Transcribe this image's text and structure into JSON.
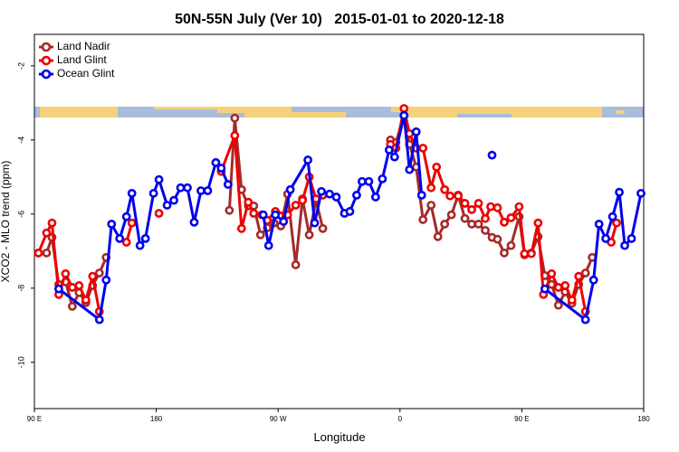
{
  "chart_data": {
    "type": "line",
    "title": "50N-55N July (Ver 10)   2015-01-01 to 2020-12-18",
    "xlabel": "Longitude",
    "ylabel": "XCO2 - MLO trend (ppm)",
    "xlim": [
      90,
      540
    ],
    "ylim": [
      -11.25,
      -1.15
    ],
    "xticks": [
      {
        "value": 90,
        "label": "90 E"
      },
      {
        "value": 180,
        "label": "180"
      },
      {
        "value": 270,
        "label": "90 W"
      },
      {
        "value": 360,
        "label": "0"
      },
      {
        "value": 450,
        "label": "90 E"
      },
      {
        "value": 540,
        "label": "180"
      }
    ],
    "yticks": [
      -2,
      -4,
      -6,
      -8,
      -10
    ],
    "legend": "top-left",
    "series": [
      {
        "name": "Land Nadir",
        "color": "#a52a2a",
        "x": [
          93,
          99,
          103,
          108,
          113,
          118,
          123,
          128,
          133,
          138,
          143,
          null,
          234,
          238,
          243,
          248,
          252,
          257,
          262,
          267,
          272,
          277,
          283,
          288,
          293,
          298,
          303,
          null,
          353,
          357,
          363,
          367,
          372,
          377,
          383,
          388,
          393,
          398,
          403,
          408,
          413,
          418,
          423,
          428,
          432,
          437,
          442,
          448,
          452,
          457,
          462,
          467,
          472,
          477,
          482,
          487,
          492,
          497,
          502
        ],
        "values": [
          -7.05,
          -7.05,
          -6.63,
          -7.9,
          -7.83,
          -8.49,
          -8.12,
          -8.39,
          -7.93,
          -7.59,
          -7.17,
          null,
          -5.9,
          -3.41,
          -5.34,
          -5.78,
          -5.78,
          -6.56,
          -6.37,
          -6.24,
          -6.32,
          -5.46,
          -7.37,
          -5.59,
          -6.56,
          -5.63,
          -6.39,
          null,
          -4.0,
          -4.07,
          -3.34,
          -4.12,
          -4.73,
          -6.15,
          -5.76,
          -6.61,
          -6.27,
          -6.02,
          -5.49,
          -6.12,
          -6.27,
          -6.27,
          -6.44,
          -6.63,
          -6.68,
          -7.05,
          -6.85,
          -6.07,
          -7.1,
          -7.05,
          -6.61,
          -7.66,
          -7.9,
          -8.46,
          -8.1,
          -8.41,
          -7.9,
          -7.59,
          -7.17
        ]
      },
      {
        "name": "Land Glint",
        "color": "#ee0000",
        "x": [
          93,
          99,
          103,
          108,
          113,
          118,
          123,
          128,
          133,
          138,
          null,
          158,
          162,
          null,
          182,
          null,
          228,
          238,
          243,
          248,
          252,
          258,
          262,
          268,
          277,
          283,
          288,
          293,
          298,
          303,
          null,
          353,
          357,
          363,
          367,
          372,
          377,
          383,
          387,
          393,
          397,
          403,
          408,
          413,
          418,
          423,
          427,
          432,
          437,
          442,
          448,
          452,
          457,
          462,
          466,
          472,
          477,
          482,
          487,
          492,
          497,
          null,
          516,
          520
        ],
        "values": [
          -7.05,
          -6.51,
          -6.24,
          -8.17,
          -7.61,
          -7.98,
          -7.93,
          -8.32,
          -7.68,
          -8.63,
          null,
          -6.76,
          -6.24,
          null,
          -5.98,
          null,
          -4.85,
          -3.88,
          -6.39,
          -5.68,
          -5.98,
          -6.02,
          -6.17,
          -5.93,
          -6.02,
          -5.76,
          -5.63,
          -5.0,
          -5.59,
          -5.49,
          null,
          -4.12,
          -4.22,
          -3.15,
          -3.83,
          -4.22,
          -4.22,
          -5.29,
          -4.73,
          -5.34,
          -5.51,
          -5.51,
          -5.71,
          -5.88,
          -5.71,
          -6.12,
          -5.8,
          -5.83,
          -6.22,
          -6.1,
          -5.8,
          -7.07,
          -7.07,
          -6.24,
          -8.17,
          -7.61,
          -7.98,
          -7.93,
          -8.32,
          -7.68,
          -8.63,
          null,
          -6.76,
          -6.24
        ]
      },
      {
        "name": "Ocean Glint",
        "color": "#0000ee",
        "x": [
          108,
          138,
          143,
          147,
          153,
          158,
          162,
          168,
          172,
          178,
          182,
          188,
          193,
          198,
          203,
          208,
          213,
          218,
          224,
          228,
          233,
          null,
          259,
          263,
          268,
          274,
          279,
          292,
          297,
          302,
          308,
          313,
          319,
          323,
          328,
          332,
          337,
          342,
          347,
          352,
          356,
          363,
          367,
          372,
          376,
          null,
          428,
          null,
          467,
          497,
          503,
          507,
          512,
          517,
          522,
          526,
          531,
          538
        ],
        "values": [
          -8.02,
          -8.85,
          -7.78,
          -6.27,
          -6.66,
          -6.07,
          -5.44,
          -6.85,
          -6.66,
          -5.44,
          -5.07,
          -5.76,
          -5.63,
          -5.29,
          -5.29,
          -6.22,
          -5.37,
          -5.37,
          -4.61,
          -4.76,
          -5.2,
          null,
          -6.02,
          -6.85,
          -6.02,
          -6.2,
          -5.34,
          -4.54,
          -6.24,
          -5.39,
          -5.46,
          -5.54,
          -5.98,
          -5.93,
          -5.49,
          -5.12,
          -5.12,
          -5.54,
          -5.05,
          -4.27,
          -4.46,
          -3.34,
          -4.8,
          -3.78,
          -5.49,
          null,
          -4.41,
          null,
          -8.02,
          -8.85,
          -7.78,
          -6.27,
          -6.66,
          -6.07,
          -5.41,
          -6.85,
          -6.66,
          -5.44
        ]
      }
    ]
  }
}
